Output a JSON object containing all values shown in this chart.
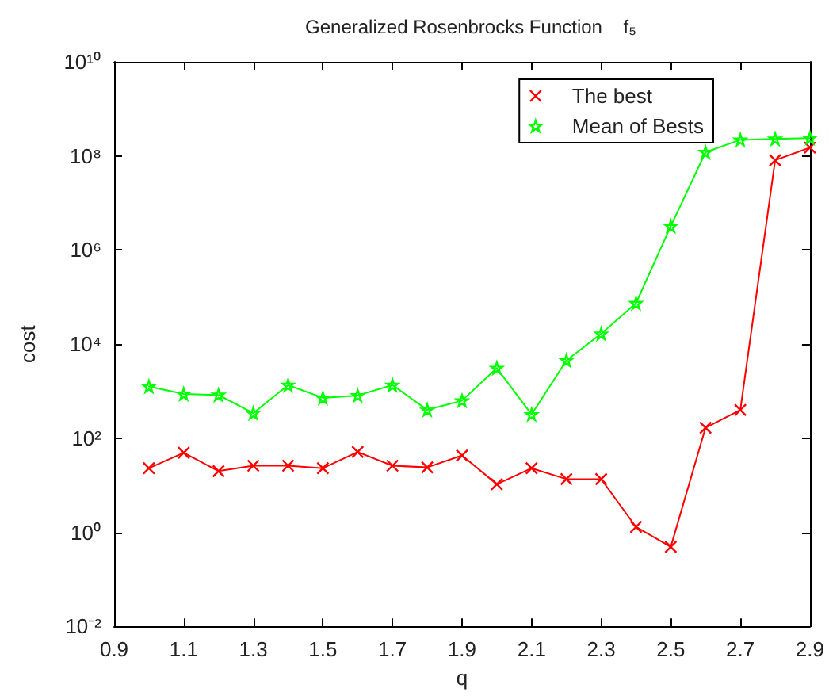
{
  "chart_data": {
    "type": "line",
    "title": "Generalized Rosenbrocks Function    f₅",
    "xlabel": "q",
    "ylabel": "cost",
    "x": [
      1.0,
      1.1,
      1.2,
      1.3,
      1.4,
      1.5,
      1.6,
      1.7,
      1.8,
      1.9,
      2.0,
      2.1,
      2.2,
      2.3,
      2.4,
      2.5,
      2.6,
      2.7,
      2.8,
      2.9
    ],
    "series": [
      {
        "name": "The best",
        "color": "#ff0000",
        "marker": "cross",
        "values": [
          23,
          49,
          20,
          26,
          26,
          23,
          51,
          26,
          24,
          43,
          10.5,
          23,
          13.5,
          13.5,
          1.3,
          0.49,
          167,
          400,
          81000000,
          150000000
        ]
      },
      {
        "name": "Mean of Bests",
        "color": "#00ff00",
        "marker": "star",
        "values": [
          1260,
          870,
          830,
          340,
          1350,
          720,
          810,
          1350,
          400,
          630,
          3100,
          320,
          4500,
          16600,
          74000,
          3200000,
          120000000,
          220000000,
          230000000,
          240000000
        ]
      }
    ],
    "log": "y",
    "xlim": [
      0.9,
      2.9
    ],
    "xticks": [
      0.9,
      1.1,
      1.3,
      1.5,
      1.7,
      1.9,
      2.1,
      2.3,
      2.5,
      2.7,
      2.9
    ],
    "ylim": [
      0.01,
      10000000000
    ],
    "yticks": [
      {
        "value": 0.01,
        "label": "10⁻²"
      },
      {
        "value": 1,
        "label": "10⁰"
      },
      {
        "value": 100,
        "label": "10²"
      },
      {
        "value": 10000,
        "label": "10⁴"
      },
      {
        "value": 1000000,
        "label": "10⁶"
      },
      {
        "value": 100000000,
        "label": "10⁸"
      },
      {
        "value": 10000000000,
        "label": "10¹⁰"
      }
    ],
    "grid": false,
    "legend": "top right",
    "line_style": "solid"
  }
}
